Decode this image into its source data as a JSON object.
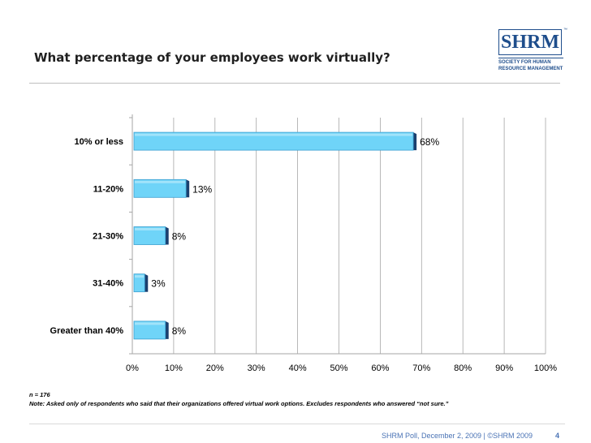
{
  "slide": {
    "title": "What percentage of your employees work virtually?",
    "logo": {
      "mark": "SHRM",
      "tm": "™",
      "line1": "SOCIETY FOR HUMAN",
      "line2": "RESOURCE MANAGEMENT"
    },
    "note_n": "n =  176",
    "note_text": "Note: Asked only of respondents who said that  their organizations offered  virtual work options. Excludes respondents who answered “not sure.”",
    "footer": "SHRM Poll, December 2, 2009 | ©SHRM 2009",
    "page_number": "4"
  },
  "colors": {
    "bar_front": "#6fd4f8",
    "bar_side": "#1b3f6e",
    "bar_border": "#3a9fd0",
    "grid": "#a6a6a6",
    "footer_text": "#4a73b5"
  },
  "chart_data": {
    "type": "bar",
    "orientation": "horizontal",
    "categories": [
      "10% or less",
      "11-20%",
      "21-30%",
      "31-40%",
      "Greater than 40%"
    ],
    "values": [
      68,
      13,
      8,
      3,
      8
    ],
    "value_labels": [
      "68%",
      "13%",
      "8%",
      "3%",
      "8%"
    ],
    "xlim": [
      0,
      100
    ],
    "x_ticks": [
      "0%",
      "10%",
      "20%",
      "30%",
      "40%",
      "50%",
      "60%",
      "70%",
      "80%",
      "90%",
      "100%"
    ],
    "grid": true,
    "title": "",
    "xlabel": "",
    "ylabel": ""
  }
}
